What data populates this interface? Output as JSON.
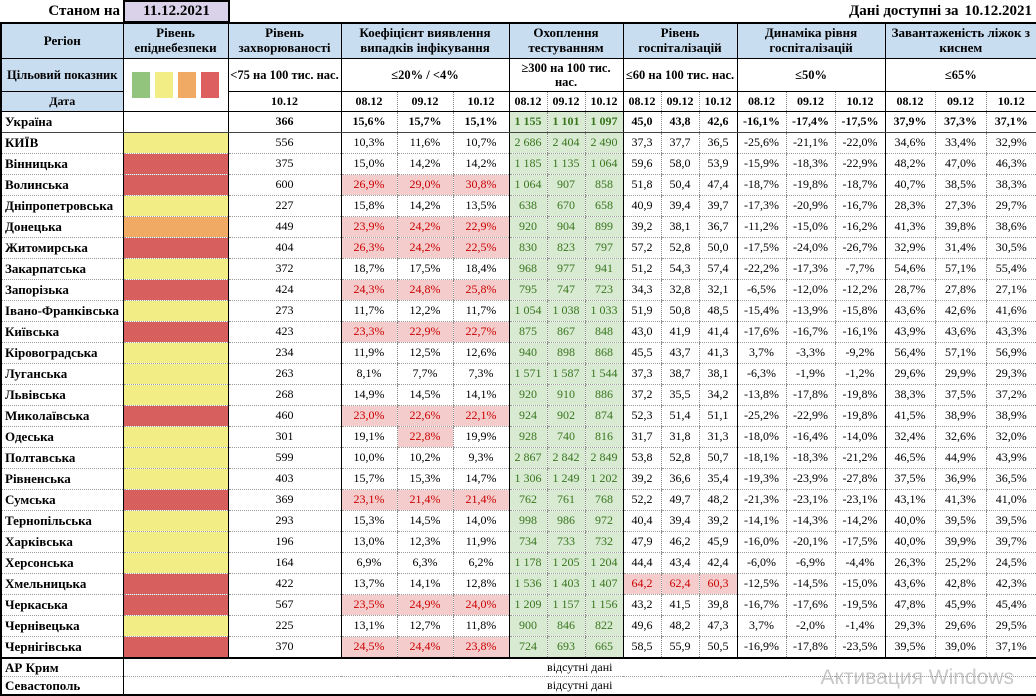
{
  "meta": {
    "as_of_label": "Станом на",
    "as_of_date": "11.12.2021",
    "available_label": "Дані доступні за",
    "available_date": "10.12.2021",
    "watermark": "Активация Windows",
    "no_data_text": "відсутні дані"
  },
  "colors": {
    "header_bg": "#c9ddf0",
    "date_box_bg": "#d9d2e9",
    "test_bg": "#d9ead3",
    "test_text": "#38761d",
    "alert_bg": "#f4cccc",
    "alert_text": "#cc0000",
    "epi": {
      "none": "#ffffff",
      "yellow": "#f2ee85",
      "orange": "#f0aa63",
      "red": "#d7605f"
    },
    "swatches": [
      "#93c47d",
      "#f2ee85",
      "#f0aa63",
      "#dd5f5f"
    ]
  },
  "header": {
    "region": "Регіон",
    "target_label": "Цільовий показник",
    "date_label": "Дата",
    "groups": [
      {
        "title": "Рівень епіднебезпеки",
        "target": "",
        "dates": []
      },
      {
        "title": "Рівень захворюваності",
        "target": "<75 на 100 тис. нас.",
        "dates": [
          "10.12"
        ]
      },
      {
        "title": "Коефіцієнт виявлення випадків інфікування",
        "target": "≤20% / <4%",
        "dates": [
          "08.12",
          "09.12",
          "10.12"
        ]
      },
      {
        "title": "Охоплення тестуванням",
        "target": "≥300 на 100 тис. нас.",
        "dates": [
          "08.12",
          "09.12",
          "10.12"
        ]
      },
      {
        "title": "Рівень госпіталізацій",
        "target": "≤60 на 100 тис. нас.",
        "dates": [
          "08.12",
          "09.12",
          "10.12"
        ]
      },
      {
        "title": "Динаміка рівня госпіталізацій",
        "target": "≤50%",
        "dates": [
          "08.12",
          "09.12",
          "10.12"
        ]
      },
      {
        "title": "Завантаженість ліжок з киснем",
        "target": "≤65%",
        "dates": [
          "08.12",
          "09.12",
          "10.12"
        ]
      }
    ]
  },
  "rows": [
    {
      "name": "Україна",
      "bold": true,
      "epi": "none",
      "inc": "366",
      "det": [
        "15,6%",
        "15,7%",
        "15,1%"
      ],
      "test": [
        "1 155",
        "1 101",
        "1 097"
      ],
      "hosp": [
        "45,0",
        "43,8",
        "42,6"
      ],
      "dyn": [
        "-16,1%",
        "-17,4%",
        "-17,5%"
      ],
      "beds": [
        "37,9%",
        "37,3%",
        "37,1%"
      ]
    },
    {
      "name": "КИЇВ",
      "epi": "yellow",
      "inc": "556",
      "det": [
        "10,3%",
        "11,6%",
        "10,7%"
      ],
      "test": [
        "2 686",
        "2 404",
        "2 490"
      ],
      "hosp": [
        "37,3",
        "37,7",
        "36,5"
      ],
      "dyn": [
        "-25,6%",
        "-21,1%",
        "-22,0%"
      ],
      "beds": [
        "34,6%",
        "33,4%",
        "32,9%"
      ]
    },
    {
      "name": "Вінницька",
      "epi": "red",
      "inc": "375",
      "det": [
        "15,0%",
        "14,2%",
        "14,2%"
      ],
      "test": [
        "1 185",
        "1 135",
        "1 064"
      ],
      "hosp": [
        "59,6",
        "58,0",
        "53,9"
      ],
      "dyn": [
        "-15,9%",
        "-18,3%",
        "-22,9%"
      ],
      "beds": [
        "48,2%",
        "47,0%",
        "46,3%"
      ]
    },
    {
      "name": "Волинська",
      "epi": "red",
      "inc": "600",
      "det": [
        "26,9%",
        "29,0%",
        "30,8%"
      ],
      "detA": [
        1,
        1,
        1
      ],
      "test": [
        "1 064",
        "907",
        "858"
      ],
      "hosp": [
        "51,8",
        "50,4",
        "47,4"
      ],
      "dyn": [
        "-18,7%",
        "-19,8%",
        "-18,7%"
      ],
      "beds": [
        "40,7%",
        "38,5%",
        "38,3%"
      ]
    },
    {
      "name": "Дніпропетровська",
      "epi": "yellow",
      "inc": "227",
      "det": [
        "15,8%",
        "14,2%",
        "13,5%"
      ],
      "test": [
        "638",
        "670",
        "658"
      ],
      "hosp": [
        "40,9",
        "39,4",
        "39,7"
      ],
      "dyn": [
        "-17,3%",
        "-20,9%",
        "-16,7%"
      ],
      "beds": [
        "28,3%",
        "27,3%",
        "29,7%"
      ]
    },
    {
      "name": "Донецька",
      "epi": "orange",
      "inc": "449",
      "det": [
        "23,9%",
        "24,2%",
        "22,9%"
      ],
      "detA": [
        1,
        1,
        1
      ],
      "test": [
        "920",
        "904",
        "899"
      ],
      "hosp": [
        "39,2",
        "38,1",
        "36,7"
      ],
      "dyn": [
        "-11,2%",
        "-15,0%",
        "-16,2%"
      ],
      "beds": [
        "41,3%",
        "39,8%",
        "38,6%"
      ]
    },
    {
      "name": "Житомирська",
      "epi": "red",
      "inc": "404",
      "det": [
        "26,3%",
        "24,2%",
        "22,5%"
      ],
      "detA": [
        1,
        1,
        1
      ],
      "test": [
        "830",
        "823",
        "797"
      ],
      "hosp": [
        "57,2",
        "52,8",
        "50,0"
      ],
      "dyn": [
        "-17,5%",
        "-24,0%",
        "-26,7%"
      ],
      "beds": [
        "32,9%",
        "31,4%",
        "30,5%"
      ]
    },
    {
      "name": "Закарпатська",
      "epi": "yellow",
      "inc": "372",
      "det": [
        "18,7%",
        "17,5%",
        "18,4%"
      ],
      "test": [
        "968",
        "977",
        "941"
      ],
      "hosp": [
        "51,2",
        "54,3",
        "57,4"
      ],
      "dyn": [
        "-22,2%",
        "-17,3%",
        "-7,7%"
      ],
      "beds": [
        "54,6%",
        "57,1%",
        "55,4%"
      ]
    },
    {
      "name": "Запорізька",
      "epi": "red",
      "inc": "424",
      "det": [
        "24,3%",
        "24,8%",
        "25,8%"
      ],
      "detA": [
        1,
        1,
        1
      ],
      "test": [
        "795",
        "747",
        "723"
      ],
      "hosp": [
        "34,3",
        "32,8",
        "32,1"
      ],
      "dyn": [
        "-6,5%",
        "-12,0%",
        "-12,2%"
      ],
      "beds": [
        "28,7%",
        "27,8%",
        "27,1%"
      ]
    },
    {
      "name": "Івано-Франківська",
      "epi": "yellow",
      "inc": "273",
      "det": [
        "11,7%",
        "12,2%",
        "11,7%"
      ],
      "test": [
        "1 054",
        "1 038",
        "1 033"
      ],
      "hosp": [
        "51,9",
        "50,8",
        "48,5"
      ],
      "dyn": [
        "-15,4%",
        "-13,9%",
        "-15,8%"
      ],
      "beds": [
        "43,6%",
        "42,6%",
        "41,6%"
      ]
    },
    {
      "name": "Київська",
      "epi": "red",
      "inc": "423",
      "det": [
        "23,3%",
        "22,9%",
        "22,7%"
      ],
      "detA": [
        1,
        1,
        1
      ],
      "test": [
        "875",
        "867",
        "848"
      ],
      "hosp": [
        "43,0",
        "41,9",
        "41,4"
      ],
      "dyn": [
        "-17,6%",
        "-16,7%",
        "-16,1%"
      ],
      "beds": [
        "43,9%",
        "43,6%",
        "43,3%"
      ]
    },
    {
      "name": "Кіровоградська",
      "epi": "yellow",
      "inc": "234",
      "det": [
        "11,9%",
        "12,5%",
        "12,6%"
      ],
      "test": [
        "940",
        "898",
        "868"
      ],
      "hosp": [
        "45,5",
        "43,7",
        "41,3"
      ],
      "dyn": [
        "3,7%",
        "-3,3%",
        "-9,2%"
      ],
      "beds": [
        "56,4%",
        "57,1%",
        "56,9%"
      ]
    },
    {
      "name": "Луганська",
      "epi": "yellow",
      "inc": "263",
      "det": [
        "8,1%",
        "7,7%",
        "7,3%"
      ],
      "test": [
        "1 571",
        "1 587",
        "1 544"
      ],
      "hosp": [
        "37,3",
        "38,7",
        "38,1"
      ],
      "dyn": [
        "-6,3%",
        "-1,9%",
        "-1,2%"
      ],
      "beds": [
        "29,6%",
        "29,9%",
        "29,3%"
      ]
    },
    {
      "name": "Львівська",
      "epi": "yellow",
      "inc": "268",
      "det": [
        "14,9%",
        "14,5%",
        "14,1%"
      ],
      "test": [
        "920",
        "910",
        "886"
      ],
      "hosp": [
        "37,2",
        "35,5",
        "34,2"
      ],
      "dyn": [
        "-13,8%",
        "-17,8%",
        "-19,8%"
      ],
      "beds": [
        "38,3%",
        "37,5%",
        "37,2%"
      ]
    },
    {
      "name": "Миколаївська",
      "epi": "red",
      "inc": "460",
      "det": [
        "23,0%",
        "22,6%",
        "22,1%"
      ],
      "detA": [
        1,
        1,
        1
      ],
      "test": [
        "924",
        "902",
        "874"
      ],
      "hosp": [
        "52,3",
        "51,4",
        "51,1"
      ],
      "dyn": [
        "-25,2%",
        "-22,9%",
        "-19,8%"
      ],
      "beds": [
        "41,5%",
        "38,9%",
        "38,9%"
      ]
    },
    {
      "name": "Одеська",
      "epi": "yellow",
      "inc": "301",
      "det": [
        "19,1%",
        "22,8%",
        "19,9%"
      ],
      "detA": [
        0,
        1,
        0
      ],
      "test": [
        "928",
        "740",
        "816"
      ],
      "hosp": [
        "31,7",
        "31,8",
        "31,3"
      ],
      "dyn": [
        "-18,0%",
        "-16,4%",
        "-14,0%"
      ],
      "beds": [
        "32,4%",
        "32,6%",
        "32,0%"
      ]
    },
    {
      "name": "Полтавська",
      "epi": "yellow",
      "inc": "599",
      "det": [
        "10,0%",
        "10,2%",
        "9,3%"
      ],
      "test": [
        "2 867",
        "2 842",
        "2 849"
      ],
      "hosp": [
        "53,8",
        "52,8",
        "50,7"
      ],
      "dyn": [
        "-18,1%",
        "-18,3%",
        "-21,2%"
      ],
      "beds": [
        "46,5%",
        "44,9%",
        "43,9%"
      ]
    },
    {
      "name": "Рівненська",
      "epi": "yellow",
      "inc": "403",
      "det": [
        "15,7%",
        "15,3%",
        "14,7%"
      ],
      "test": [
        "1 306",
        "1 249",
        "1 202"
      ],
      "hosp": [
        "39,2",
        "36,6",
        "35,4"
      ],
      "dyn": [
        "-19,3%",
        "-23,9%",
        "-27,8%"
      ],
      "beds": [
        "37,5%",
        "36,9%",
        "36,5%"
      ]
    },
    {
      "name": "Сумська",
      "epi": "red",
      "inc": "369",
      "det": [
        "23,1%",
        "21,4%",
        "21,4%"
      ],
      "detA": [
        1,
        1,
        1
      ],
      "test": [
        "762",
        "761",
        "768"
      ],
      "hosp": [
        "52,2",
        "49,7",
        "48,2"
      ],
      "dyn": [
        "-21,3%",
        "-23,1%",
        "-23,1%"
      ],
      "beds": [
        "43,1%",
        "41,3%",
        "41,0%"
      ]
    },
    {
      "name": "Тернопільська",
      "epi": "yellow",
      "inc": "293",
      "det": [
        "15,3%",
        "14,5%",
        "14,0%"
      ],
      "test": [
        "998",
        "986",
        "972"
      ],
      "hosp": [
        "40,4",
        "39,4",
        "39,2"
      ],
      "dyn": [
        "-14,1%",
        "-14,3%",
        "-14,2%"
      ],
      "beds": [
        "40,0%",
        "39,5%",
        "39,5%"
      ]
    },
    {
      "name": "Харківська",
      "epi": "yellow",
      "inc": "196",
      "det": [
        "13,0%",
        "12,3%",
        "11,9%"
      ],
      "test": [
        "734",
        "733",
        "732"
      ],
      "hosp": [
        "47,9",
        "46,2",
        "45,9"
      ],
      "dyn": [
        "-16,0%",
        "-20,1%",
        "-17,5%"
      ],
      "beds": [
        "40,0%",
        "39,9%",
        "39,7%"
      ]
    },
    {
      "name": "Херсонська",
      "epi": "yellow",
      "inc": "164",
      "det": [
        "6,9%",
        "6,3%",
        "6,2%"
      ],
      "test": [
        "1 178",
        "1 205",
        "1 204"
      ],
      "hosp": [
        "44,4",
        "43,4",
        "42,4"
      ],
      "dyn": [
        "-6,0%",
        "-6,9%",
        "-4,4%"
      ],
      "beds": [
        "26,3%",
        "25,2%",
        "24,5%"
      ]
    },
    {
      "name": "Хмельницька",
      "epi": "red",
      "inc": "422",
      "det": [
        "13,7%",
        "14,1%",
        "12,8%"
      ],
      "test": [
        "1 536",
        "1 403",
        "1 407"
      ],
      "hosp": [
        "64,2",
        "62,4",
        "60,3"
      ],
      "hospA": [
        1,
        1,
        1
      ],
      "dyn": [
        "-12,5%",
        "-14,5%",
        "-15,0%"
      ],
      "beds": [
        "43,6%",
        "42,8%",
        "42,3%"
      ]
    },
    {
      "name": "Черкаська",
      "epi": "red",
      "inc": "567",
      "det": [
        "23,5%",
        "24,9%",
        "24,0%"
      ],
      "detA": [
        1,
        1,
        1
      ],
      "test": [
        "1 209",
        "1 157",
        "1 156"
      ],
      "hosp": [
        "43,2",
        "41,5",
        "39,8"
      ],
      "dyn": [
        "-16,7%",
        "-17,6%",
        "-19,5%"
      ],
      "beds": [
        "47,8%",
        "45,9%",
        "45,4%"
      ]
    },
    {
      "name": "Чернівецька",
      "epi": "yellow",
      "inc": "225",
      "det": [
        "13,1%",
        "12,7%",
        "11,8%"
      ],
      "test": [
        "900",
        "846",
        "822"
      ],
      "hosp": [
        "49,6",
        "48,2",
        "47,3"
      ],
      "dyn": [
        "3,7%",
        "-2,0%",
        "-1,4%"
      ],
      "beds": [
        "29,3%",
        "29,6%",
        "29,5%"
      ]
    },
    {
      "name": "Чернігівська",
      "epi": "red",
      "inc": "370",
      "det": [
        "24,5%",
        "24,4%",
        "23,8%"
      ],
      "detA": [
        1,
        1,
        1
      ],
      "test": [
        "724",
        "693",
        "665"
      ],
      "hosp": [
        "58,5",
        "55,9",
        "50,5"
      ],
      "dyn": [
        "-16,9%",
        "-17,8%",
        "-23,5%"
      ],
      "beds": [
        "39,5%",
        "39,0%",
        "37,1%"
      ]
    }
  ],
  "no_data_rows": [
    {
      "name": "АР Крим"
    },
    {
      "name": "Севастополь"
    }
  ]
}
